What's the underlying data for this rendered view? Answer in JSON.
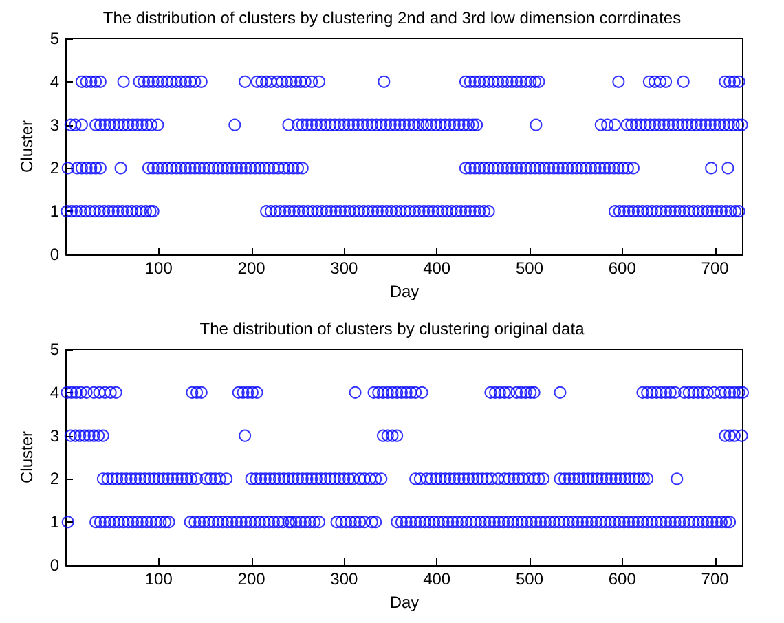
{
  "chart_data": [
    {
      "type": "scatter",
      "title": "The distribution of clusters by clustering 2nd and 3rd low dimension corrdinates",
      "xlabel": "Day",
      "ylabel": "Cluster",
      "xlim": [
        0,
        730
      ],
      "xticks": [
        100,
        200,
        300,
        400,
        500,
        600,
        700
      ],
      "ylim": [
        0,
        5
      ],
      "yticks": [
        0,
        1,
        2,
        3,
        4,
        5
      ],
      "grid": false,
      "legend": false,
      "marker": "circle",
      "series": [
        {
          "color": "#0000ff",
          "x": [
            17,
            22,
            27,
            32,
            37,
            62,
            79,
            84,
            89,
            94,
            99,
            104,
            109,
            114,
            119,
            124,
            129,
            134,
            139,
            146,
            193,
            206,
            211,
            216,
            221,
            228,
            233,
            238,
            243,
            248,
            253,
            258,
            265,
            273,
            343,
            431,
            436,
            441,
            446,
            451,
            456,
            461,
            466,
            471,
            476,
            481,
            486,
            491,
            496,
            501,
            506,
            510,
            596,
            629,
            635,
            641,
            647,
            666,
            711,
            716,
            721,
            726
          ],
          "values": [
            4,
            4,
            4,
            4,
            4,
            4,
            4,
            4,
            4,
            4,
            4,
            4,
            4,
            4,
            4,
            4,
            4,
            4,
            4,
            4,
            4,
            4,
            4,
            4,
            4,
            4,
            4,
            4,
            4,
            4,
            4,
            4,
            4,
            4,
            4,
            4,
            4,
            4,
            4,
            4,
            4,
            4,
            4,
            4,
            4,
            4,
            4,
            4,
            4,
            4,
            4,
            4,
            4,
            4,
            4,
            4,
            4,
            4,
            4,
            4,
            4,
            4
          ]
        },
        {
          "color": "#0000ff",
          "x": [
            5,
            10,
            17,
            32,
            37,
            42,
            47,
            52,
            57,
            62,
            67,
            72,
            77,
            82,
            87,
            92,
            99,
            182,
            240,
            250,
            255,
            260,
            265,
            270,
            275,
            280,
            285,
            290,
            295,
            300,
            305,
            310,
            315,
            320,
            325,
            330,
            335,
            340,
            345,
            350,
            355,
            360,
            365,
            370,
            375,
            380,
            385,
            389,
            394,
            399,
            404,
            409,
            414,
            419,
            424,
            429,
            434,
            439,
            443,
            507,
            577,
            584,
            592,
            605,
            610,
            615,
            620,
            625,
            630,
            635,
            640,
            645,
            650,
            655,
            660,
            665,
            670,
            675,
            680,
            685,
            690,
            695,
            700,
            705,
            710,
            715,
            720,
            725,
            729
          ],
          "values": [
            3,
            3,
            3,
            3,
            3,
            3,
            3,
            3,
            3,
            3,
            3,
            3,
            3,
            3,
            3,
            3,
            3,
            3,
            3,
            3,
            3,
            3,
            3,
            3,
            3,
            3,
            3,
            3,
            3,
            3,
            3,
            3,
            3,
            3,
            3,
            3,
            3,
            3,
            3,
            3,
            3,
            3,
            3,
            3,
            3,
            3,
            3,
            3,
            3,
            3,
            3,
            3,
            3,
            3,
            3,
            3,
            3,
            3,
            3,
            3,
            3,
            3,
            3,
            3,
            3,
            3,
            3,
            3,
            3,
            3,
            3,
            3,
            3,
            3,
            3,
            3,
            3,
            3,
            3,
            3,
            3,
            3,
            3,
            3,
            3,
            3,
            3,
            3,
            3
          ]
        },
        {
          "color": "#0000ff",
          "x": [
            2,
            12,
            17,
            22,
            27,
            32,
            37,
            59,
            89,
            94,
            99,
            104,
            109,
            114,
            119,
            124,
            129,
            134,
            139,
            144,
            149,
            154,
            159,
            164,
            169,
            174,
            179,
            184,
            189,
            194,
            199,
            204,
            209,
            214,
            219,
            224,
            229,
            235,
            240,
            245,
            250,
            255,
            431,
            436,
            441,
            446,
            451,
            456,
            461,
            466,
            471,
            476,
            481,
            486,
            491,
            496,
            501,
            506,
            511,
            516,
            521,
            526,
            531,
            536,
            541,
            546,
            551,
            556,
            561,
            566,
            571,
            576,
            581,
            586,
            591,
            596,
            601,
            606,
            612,
            696,
            714
          ],
          "values": [
            2,
            2,
            2,
            2,
            2,
            2,
            2,
            2,
            2,
            2,
            2,
            2,
            2,
            2,
            2,
            2,
            2,
            2,
            2,
            2,
            2,
            2,
            2,
            2,
            2,
            2,
            2,
            2,
            2,
            2,
            2,
            2,
            2,
            2,
            2,
            2,
            2,
            2,
            2,
            2,
            2,
            2,
            2,
            2,
            2,
            2,
            2,
            2,
            2,
            2,
            2,
            2,
            2,
            2,
            2,
            2,
            2,
            2,
            2,
            2,
            2,
            2,
            2,
            2,
            2,
            2,
            2,
            2,
            2,
            2,
            2,
            2,
            2,
            2,
            2,
            2,
            2,
            2,
            2,
            2,
            2
          ]
        },
        {
          "color": "#0000ff",
          "x": [
            1,
            6,
            11,
            16,
            21,
            26,
            31,
            36,
            41,
            46,
            51,
            56,
            61,
            66,
            71,
            76,
            81,
            86,
            91,
            94,
            216,
            221,
            226,
            231,
            236,
            241,
            246,
            251,
            256,
            261,
            266,
            271,
            276,
            281,
            286,
            291,
            296,
            301,
            306,
            311,
            316,
            321,
            326,
            331,
            336,
            341,
            346,
            351,
            356,
            361,
            366,
            371,
            376,
            381,
            386,
            391,
            396,
            401,
            406,
            411,
            416,
            421,
            426,
            431,
            436,
            441,
            446,
            451,
            456,
            592,
            597,
            602,
            607,
            612,
            617,
            622,
            627,
            632,
            637,
            642,
            647,
            652,
            657,
            662,
            667,
            672,
            677,
            682,
            687,
            692,
            697,
            702,
            707,
            712,
            717,
            722,
            726
          ],
          "values": [
            1,
            1,
            1,
            1,
            1,
            1,
            1,
            1,
            1,
            1,
            1,
            1,
            1,
            1,
            1,
            1,
            1,
            1,
            1,
            1,
            1,
            1,
            1,
            1,
            1,
            1,
            1,
            1,
            1,
            1,
            1,
            1,
            1,
            1,
            1,
            1,
            1,
            1,
            1,
            1,
            1,
            1,
            1,
            1,
            1,
            1,
            1,
            1,
            1,
            1,
            1,
            1,
            1,
            1,
            1,
            1,
            1,
            1,
            1,
            1,
            1,
            1,
            1,
            1,
            1,
            1,
            1,
            1,
            1,
            1,
            1,
            1,
            1,
            1,
            1,
            1,
            1,
            1,
            1,
            1,
            1,
            1,
            1,
            1,
            1,
            1,
            1,
            1,
            1,
            1,
            1,
            1,
            1,
            1,
            1,
            1,
            1
          ]
        }
      ]
    },
    {
      "type": "scatter",
      "title": "The distribution of clusters by clustering original data",
      "xlabel": "Day",
      "ylabel": "Cluster",
      "xlim": [
        0,
        730
      ],
      "xticks": [
        100,
        200,
        300,
        400,
        500,
        600,
        700
      ],
      "ylim": [
        0,
        5
      ],
      "yticks": [
        0,
        1,
        2,
        3,
        4,
        5
      ],
      "grid": false,
      "legend": false,
      "marker": "circle",
      "series": [
        {
          "color": "#0000ff",
          "x": [
            1,
            6,
            11,
            16,
            22,
            30,
            36,
            42,
            48,
            54,
            136,
            141,
            146,
            186,
            191,
            196,
            201,
            206,
            312,
            332,
            337,
            342,
            347,
            352,
            357,
            362,
            367,
            372,
            377,
            384,
            458,
            463,
            468,
            473,
            478,
            486,
            491,
            496,
            501,
            505,
            533,
            622,
            627,
            632,
            637,
            642,
            647,
            652,
            657,
            667,
            672,
            677,
            682,
            687,
            692,
            699,
            706,
            711,
            716,
            721,
            726,
            730
          ],
          "values": [
            4,
            4,
            4,
            4,
            4,
            4,
            4,
            4,
            4,
            4,
            4,
            4,
            4,
            4,
            4,
            4,
            4,
            4,
            4,
            4,
            4,
            4,
            4,
            4,
            4,
            4,
            4,
            4,
            4,
            4,
            4,
            4,
            4,
            4,
            4,
            4,
            4,
            4,
            4,
            4,
            4,
            4,
            4,
            4,
            4,
            4,
            4,
            4,
            4,
            4,
            4,
            4,
            4,
            4,
            4,
            4,
            4,
            4,
            4,
            4,
            4,
            4
          ]
        },
        {
          "color": "#0000ff",
          "x": [
            5,
            10,
            15,
            20,
            25,
            30,
            35,
            40,
            193,
            342,
            347,
            352,
            357,
            711,
            716,
            721,
            729
          ],
          "values": [
            3,
            3,
            3,
            3,
            3,
            3,
            3,
            3,
            3,
            3,
            3,
            3,
            3,
            3,
            3,
            3,
            3
          ]
        },
        {
          "color": "#0000ff",
          "x": [
            40,
            45,
            50,
            55,
            60,
            65,
            70,
            75,
            80,
            85,
            90,
            95,
            100,
            105,
            110,
            115,
            120,
            125,
            130,
            135,
            141,
            151,
            156,
            161,
            166,
            173,
            200,
            205,
            210,
            215,
            220,
            225,
            230,
            235,
            240,
            245,
            250,
            255,
            260,
            265,
            270,
            275,
            280,
            285,
            290,
            295,
            300,
            305,
            310,
            317,
            322,
            328,
            334,
            340,
            377,
            382,
            389,
            394,
            399,
            404,
            409,
            414,
            419,
            424,
            429,
            434,
            439,
            444,
            449,
            454,
            459,
            466,
            473,
            478,
            483,
            488,
            493,
            499,
            505,
            510,
            515,
            533,
            538,
            543,
            548,
            553,
            558,
            563,
            568,
            573,
            578,
            583,
            588,
            593,
            598,
            603,
            608,
            613,
            618,
            623,
            627,
            659
          ],
          "values": [
            2,
            2,
            2,
            2,
            2,
            2,
            2,
            2,
            2,
            2,
            2,
            2,
            2,
            2,
            2,
            2,
            2,
            2,
            2,
            2,
            2,
            2,
            2,
            2,
            2,
            2,
            2,
            2,
            2,
            2,
            2,
            2,
            2,
            2,
            2,
            2,
            2,
            2,
            2,
            2,
            2,
            2,
            2,
            2,
            2,
            2,
            2,
            2,
            2,
            2,
            2,
            2,
            2,
            2,
            2,
            2,
            2,
            2,
            2,
            2,
            2,
            2,
            2,
            2,
            2,
            2,
            2,
            2,
            2,
            2,
            2,
            2,
            2,
            2,
            2,
            2,
            2,
            2,
            2,
            2,
            2,
            2,
            2,
            2,
            2,
            2,
            2,
            2,
            2,
            2,
            2,
            2,
            2,
            2,
            2,
            2,
            2,
            2,
            2,
            2,
            2,
            2
          ]
        },
        {
          "color": "#0000ff",
          "x": [
            2,
            32,
            37,
            42,
            47,
            52,
            57,
            62,
            67,
            72,
            77,
            82,
            87,
            92,
            97,
            102,
            107,
            111,
            134,
            139,
            144,
            149,
            154,
            159,
            164,
            169,
            174,
            179,
            184,
            189,
            194,
            199,
            204,
            209,
            214,
            219,
            224,
            229,
            234,
            240,
            243,
            248,
            253,
            258,
            263,
            268,
            273,
            292,
            297,
            302,
            307,
            312,
            317,
            322,
            330,
            334,
            357,
            362,
            367,
            372,
            377,
            382,
            387,
            392,
            397,
            402,
            407,
            412,
            417,
            422,
            427,
            432,
            437,
            442,
            447,
            452,
            457,
            462,
            467,
            472,
            477,
            482,
            487,
            492,
            497,
            502,
            507,
            512,
            517,
            522,
            527,
            532,
            537,
            542,
            547,
            552,
            557,
            562,
            567,
            572,
            577,
            582,
            587,
            592,
            597,
            602,
            607,
            612,
            617,
            622,
            627,
            632,
            637,
            642,
            647,
            652,
            657,
            662,
            667,
            672,
            677,
            682,
            687,
            692,
            697,
            702,
            707,
            712,
            716
          ],
          "values": [
            1,
            1,
            1,
            1,
            1,
            1,
            1,
            1,
            1,
            1,
            1,
            1,
            1,
            1,
            1,
            1,
            1,
            1,
            1,
            1,
            1,
            1,
            1,
            1,
            1,
            1,
            1,
            1,
            1,
            1,
            1,
            1,
            1,
            1,
            1,
            1,
            1,
            1,
            1,
            1,
            1,
            1,
            1,
            1,
            1,
            1,
            1,
            1,
            1,
            1,
            1,
            1,
            1,
            1,
            1,
            1,
            1,
            1,
            1,
            1,
            1,
            1,
            1,
            1,
            1,
            1,
            1,
            1,
            1,
            1,
            1,
            1,
            1,
            1,
            1,
            1,
            1,
            1,
            1,
            1,
            1,
            1,
            1,
            1,
            1,
            1,
            1,
            1,
            1,
            1,
            1,
            1,
            1,
            1,
            1,
            1,
            1,
            1,
            1,
            1,
            1,
            1,
            1,
            1,
            1,
            1,
            1,
            1,
            1,
            1,
            1,
            1,
            1,
            1,
            1,
            1,
            1,
            1,
            1,
            1,
            1,
            1,
            1,
            1,
            1,
            1,
            1,
            1,
            1
          ]
        }
      ]
    }
  ]
}
